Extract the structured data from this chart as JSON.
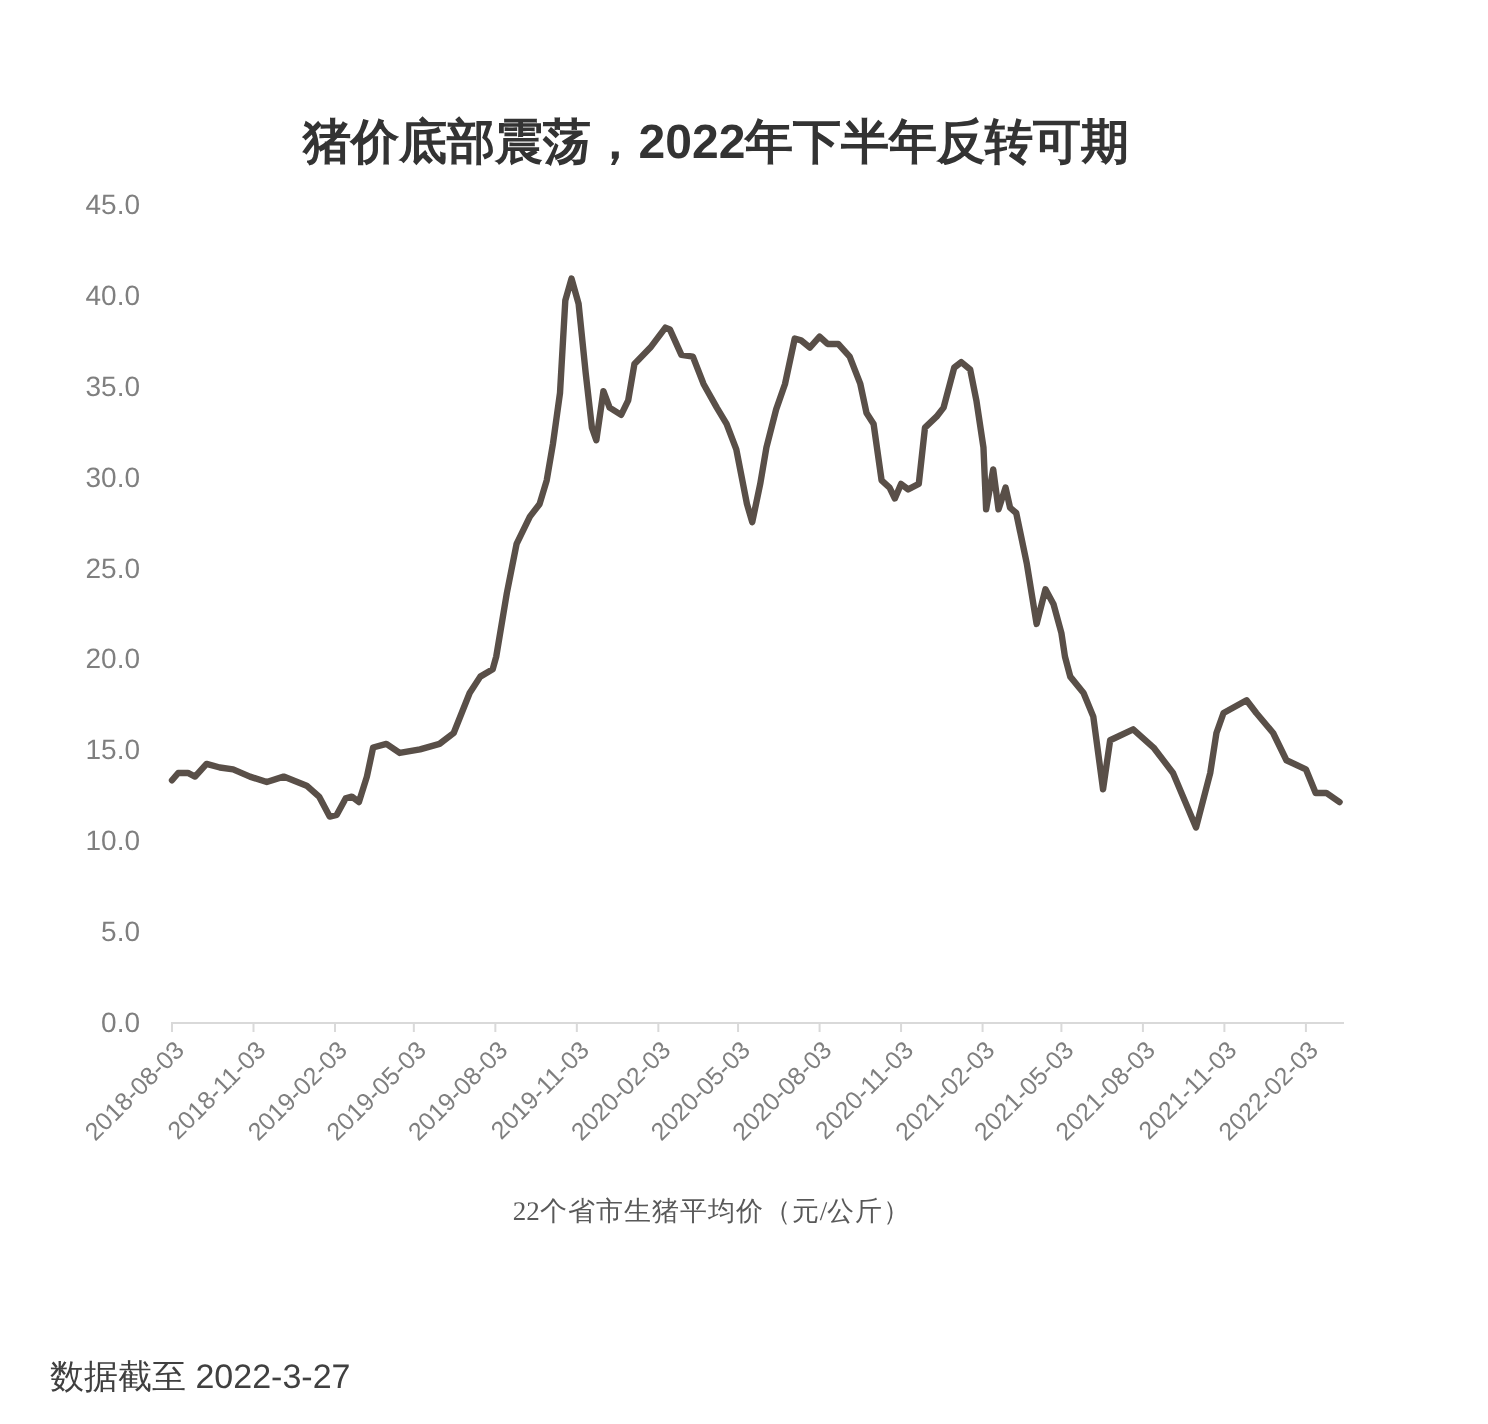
{
  "chart_data": {
    "type": "line",
    "title": "猪价底部震荡，2022年下半年反转可期",
    "xlabel": "22个省市生猪平均价（元/公斤）",
    "annotations": [
      "数据截至 2022-3-27"
    ],
    "x": [
      "2018-08-03",
      "2018-08-10",
      "2018-08-21",
      "2018-08-29",
      "2018-09-11",
      "2018-09-26",
      "2018-10-11",
      "2018-10-30",
      "2018-11-18",
      "2018-12-07",
      "2019-01-02",
      "2019-01-16",
      "2019-01-28",
      "2019-02-05",
      "2019-02-15",
      "2019-02-22",
      "2019-03-02",
      "2019-03-11",
      "2019-03-18",
      "2019-04-02",
      "2019-04-17",
      "2019-05-10",
      "2019-06-01",
      "2019-06-17",
      "2019-07-05",
      "2019-07-17",
      "2019-07-31",
      "2019-08-04",
      "2019-08-16",
      "2019-08-27",
      "2019-09-11",
      "2019-09-22",
      "2019-09-30",
      "2019-10-07",
      "2019-10-15",
      "2019-10-21",
      "2019-10-28",
      "2019-11-05",
      "2019-11-13",
      "2019-11-20",
      "2019-11-25",
      "2019-12-03",
      "2019-12-10",
      "2019-12-23",
      "2019-12-31",
      "2020-01-07",
      "2020-01-25",
      "2020-02-11",
      "2020-02-16",
      "2020-02-29",
      "2020-03-13",
      "2020-03-25",
      "2020-04-09",
      "2020-04-20",
      "2020-05-01",
      "2020-05-13",
      "2020-05-19",
      "2020-05-28",
      "2020-06-04",
      "2020-06-15",
      "2020-06-25",
      "2020-07-06",
      "2020-07-13",
      "2020-07-23",
      "2020-08-03",
      "2020-08-12",
      "2020-08-24",
      "2020-09-06",
      "2020-09-18",
      "2020-09-25",
      "2020-10-03",
      "2020-10-12",
      "2020-10-21",
      "2020-10-27",
      "2020-11-03",
      "2020-11-11",
      "2020-11-23",
      "2020-11-30",
      "2020-12-13",
      "2020-12-21",
      "2021-01-02",
      "2021-01-10",
      "2021-01-20",
      "2021-01-27",
      "2021-02-04",
      "2021-02-07",
      "2021-02-15",
      "2021-02-21",
      "2021-03-01",
      "2021-03-06",
      "2021-03-13",
      "2021-03-25",
      "2021-04-05",
      "2021-04-15",
      "2021-04-24",
      "2021-05-03",
      "2021-05-07",
      "2021-05-13",
      "2021-05-28",
      "2021-06-08",
      "2021-06-19",
      "2021-06-27",
      "2021-07-23",
      "2021-08-15",
      "2021-09-06",
      "2021-10-02",
      "2021-10-18",
      "2021-10-25",
      "2021-11-02",
      "2021-11-28",
      "2021-12-09",
      "2021-12-28",
      "2022-01-12",
      "2022-02-03",
      "2022-02-14",
      "2022-02-26",
      "2022-03-13"
    ],
    "series": [
      {
        "color": "#594f48",
        "values": [
          13.3,
          13.7,
          13.7,
          13.5,
          14.2,
          14.0,
          13.9,
          13.5,
          13.2,
          13.5,
          13.0,
          12.4,
          11.3,
          11.4,
          12.3,
          12.4,
          12.1,
          13.5,
          15.1,
          15.3,
          14.8,
          15.0,
          15.3,
          15.9,
          18.1,
          19.0,
          19.4,
          20.1,
          23.6,
          26.3,
          27.8,
          28.5,
          29.8,
          31.8,
          34.6,
          39.7,
          40.9,
          39.5,
          35.7,
          32.7,
          32.0,
          34.7,
          33.8,
          33.4,
          34.2,
          36.2,
          37.1,
          38.2,
          38.1,
          36.7,
          36.6,
          35.1,
          33.8,
          32.9,
          31.5,
          28.5,
          27.5,
          29.6,
          31.6,
          33.7,
          35.1,
          37.6,
          37.5,
          37.1,
          37.7,
          37.3,
          37.3,
          36.6,
          35.1,
          33.5,
          32.9,
          29.8,
          29.4,
          28.8,
          29.6,
          29.3,
          29.6,
          32.7,
          33.3,
          33.8,
          36.0,
          36.3,
          35.9,
          34.2,
          31.6,
          28.2,
          30.4,
          28.2,
          29.4,
          28.3,
          28.0,
          25.2,
          21.9,
          23.8,
          23.0,
          21.4,
          20.1,
          19.0,
          18.1,
          16.8,
          12.8,
          15.5,
          16.1,
          15.1,
          13.7,
          10.7,
          13.7,
          15.9,
          17.0,
          17.7,
          17.0,
          15.9,
          14.4,
          13.9,
          12.6,
          12.6,
          12.1
        ]
      }
    ],
    "xlim": [
      "2018-08-03",
      "2022-03-18"
    ],
    "xticks": [
      "2018-08-03",
      "2018-11-03",
      "2019-02-03",
      "2019-05-03",
      "2019-08-03",
      "2019-11-03",
      "2020-02-03",
      "2020-05-03",
      "2020-08-03",
      "2020-11-03",
      "2021-02-03",
      "2021-05-03",
      "2021-08-03",
      "2021-11-03",
      "2022-02-03"
    ],
    "ylim": [
      0,
      45
    ],
    "yticks": [
      {
        "value": 0,
        "label": "0.0"
      },
      {
        "value": 5,
        "label": "5.0"
      },
      {
        "value": 10,
        "label": "10.0"
      },
      {
        "value": 15,
        "label": "15.0"
      },
      {
        "value": 20,
        "label": "20.0"
      },
      {
        "value": 25,
        "label": "25.0"
      },
      {
        "value": 30,
        "label": "30.0"
      },
      {
        "value": 35,
        "label": "35.0"
      },
      {
        "value": 40,
        "label": "40.0"
      },
      {
        "value": 45,
        "label": "45.0"
      }
    ]
  }
}
